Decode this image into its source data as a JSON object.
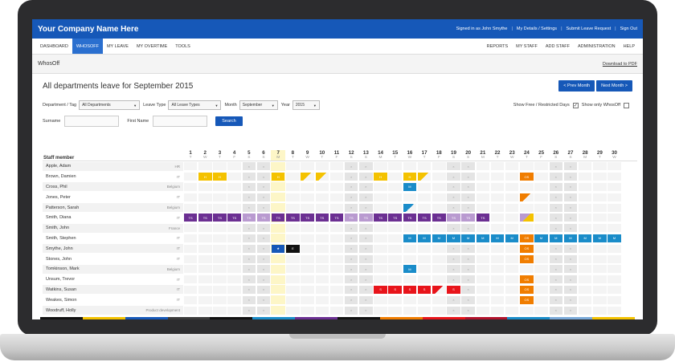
{
  "app": {
    "brand": "Your Company Name Here"
  },
  "header_links": [
    "Signed in as John Smythe",
    "My Details / Settings",
    "Submit Leave Request",
    "Sign Out"
  ],
  "nav_left": [
    "DASHBOARD",
    "WHOSOFF",
    "MY LEAVE",
    "MY OVERTIME",
    "TOOLS"
  ],
  "nav_right": [
    "REPORTS",
    "MY STAFF",
    "ADD STAFF",
    "ADMINISTRATION",
    "HELP"
  ],
  "bar": {
    "title": "WhosOff",
    "download": "Download to PDF"
  },
  "page": {
    "title": "All departments leave for September 2015",
    "prev": "< Prev Month",
    "next": "Next Month >"
  },
  "filters": {
    "dept_label": "Department / Tag",
    "dept_value": "All Departments",
    "type_label": "Leave Type",
    "type_value": "All Leave Types",
    "month_label": "Month",
    "month_value": "September",
    "year_label": "Year",
    "year_value": "2015",
    "show_free": "Show Free / Restricted Days",
    "show_only": "Show only WhosOff"
  },
  "search": {
    "surname_label": "Surname",
    "first_label": "First Name",
    "button": "Search"
  },
  "grid": {
    "header_label": "Staff member",
    "days": [
      {
        "d": "1",
        "w": "T"
      },
      {
        "d": "2",
        "w": "W"
      },
      {
        "d": "3",
        "w": "T"
      },
      {
        "d": "4",
        "w": "F"
      },
      {
        "d": "5",
        "w": "S"
      },
      {
        "d": "6",
        "w": "S"
      },
      {
        "d": "7",
        "w": "M"
      },
      {
        "d": "8",
        "w": "T"
      },
      {
        "d": "9",
        "w": "W"
      },
      {
        "d": "10",
        "w": "T"
      },
      {
        "d": "11",
        "w": "F"
      },
      {
        "d": "12",
        "w": "S"
      },
      {
        "d": "13",
        "w": "S"
      },
      {
        "d": "14",
        "w": "M"
      },
      {
        "d": "15",
        "w": "T"
      },
      {
        "d": "16",
        "w": "W"
      },
      {
        "d": "17",
        "w": "T"
      },
      {
        "d": "18",
        "w": "F"
      },
      {
        "d": "19",
        "w": "S"
      },
      {
        "d": "20",
        "w": "S"
      },
      {
        "d": "21",
        "w": "M"
      },
      {
        "d": "22",
        "w": "T"
      },
      {
        "d": "23",
        "w": "W"
      },
      {
        "d": "24",
        "w": "T"
      },
      {
        "d": "25",
        "w": "F"
      },
      {
        "d": "26",
        "w": "S"
      },
      {
        "d": "27",
        "w": "S"
      },
      {
        "d": "28",
        "w": "M"
      },
      {
        "d": "29",
        "w": "T"
      },
      {
        "d": "30",
        "w": "W"
      }
    ],
    "staff": [
      {
        "name": "Apple, Adam",
        "dept": "HR",
        "cells": {}
      },
      {
        "name": "Brown, Damien",
        "dept": "IT",
        "cells": {
          "2": [
            "hol",
            "H"
          ],
          "3": [
            "hol",
            "H"
          ],
          "7": [
            "hol",
            "H"
          ],
          "9": [
            "tri-hol",
            ""
          ],
          "10": [
            "tri-hol",
            ""
          ],
          "14": [
            "hol",
            "H"
          ],
          "16": [
            "hol",
            "H"
          ],
          "17": [
            "tri-hol",
            ""
          ],
          "24": [
            "os",
            "OS"
          ]
        }
      },
      {
        "name": "Cross, Phil",
        "dept": "Belgium",
        "cells": {
          "16": [
            "med",
            "M"
          ]
        }
      },
      {
        "name": "Jones, Peter",
        "dept": "IT",
        "cells": {
          "24": [
            "tri-os",
            ""
          ]
        }
      },
      {
        "name": "Patterson, Sarah",
        "dept": "Belgium",
        "cells": {
          "16": [
            "tri-med",
            ""
          ]
        }
      },
      {
        "name": "Smith, Diana",
        "dept": "IT",
        "cells": {
          "1": [
            "ts",
            "TS"
          ],
          "2": [
            "ts",
            "TS"
          ],
          "3": [
            "ts",
            "TS"
          ],
          "4": [
            "ts",
            "TS"
          ],
          "5": [
            "tsl",
            "TS"
          ],
          "6": [
            "tsl",
            "TS"
          ],
          "7": [
            "ts",
            "TS"
          ],
          "8": [
            "ts",
            "TS"
          ],
          "9": [
            "ts",
            "TS"
          ],
          "10": [
            "ts",
            "TS"
          ],
          "11": [
            "ts",
            "TS"
          ],
          "12": [
            "tsl",
            "TS"
          ],
          "13": [
            "tsl",
            "TS"
          ],
          "14": [
            "ts",
            "TS"
          ],
          "15": [
            "ts",
            "TS"
          ],
          "16": [
            "ts",
            "TS"
          ],
          "17": [
            "ts",
            "TS"
          ],
          "18": [
            "ts",
            "TS"
          ],
          "19": [
            "tsl",
            "TS"
          ],
          "20": [
            "tsl",
            "TS"
          ],
          "21": [
            "ts",
            "TS"
          ],
          "24": [
            "tri-ts",
            ""
          ]
        }
      },
      {
        "name": "Smith, John",
        "dept": "France",
        "cells": {}
      },
      {
        "name": "Smith, Stephen",
        "dept": "IT",
        "cells": {
          "16": [
            "med",
            "M"
          ],
          "17": [
            "med",
            "M"
          ],
          "18": [
            "med",
            "M"
          ],
          "19": [
            "med",
            "M"
          ],
          "20": [
            "med",
            "M"
          ],
          "21": [
            "med",
            "M"
          ],
          "22": [
            "med",
            "M"
          ],
          "23": [
            "med",
            "M"
          ],
          "24": [
            "os",
            "OS"
          ],
          "25": [
            "med",
            "M"
          ],
          "26": [
            "med",
            "M"
          ],
          "27": [
            "med",
            "M"
          ],
          "28": [
            "med",
            "M"
          ],
          "29": [
            "med",
            "M"
          ],
          "30": [
            "med",
            "M"
          ]
        }
      },
      {
        "name": "Smythe, John",
        "dept": "IT",
        "cells": {
          "7": [
            "blu",
            "★"
          ],
          "8": [
            "blk",
            "E"
          ],
          "24": [
            "os",
            "OS"
          ]
        }
      },
      {
        "name": "Stones, John",
        "dept": "IT",
        "cells": {
          "24": [
            "os",
            "OS"
          ]
        }
      },
      {
        "name": "Tomkinson, Mark",
        "dept": "Belgium",
        "cells": {
          "16": [
            "med",
            "M"
          ]
        }
      },
      {
        "name": "Unsum, Trevor",
        "dept": "IT",
        "cells": {
          "24": [
            "os",
            "OS"
          ]
        }
      },
      {
        "name": "Watkins, Susan",
        "dept": "IT",
        "cells": {
          "14": [
            "sick",
            "S"
          ],
          "15": [
            "sick",
            "S"
          ],
          "16": [
            "sick",
            "S"
          ],
          "17": [
            "sick",
            "S"
          ],
          "18": [
            "tri-sick",
            ""
          ],
          "19": [
            "sick",
            "S"
          ],
          "24": [
            "os",
            "OS"
          ]
        }
      },
      {
        "name": "Weakes, Simon",
        "dept": "IT",
        "cells": {
          "24": [
            "os",
            "OS"
          ]
        }
      },
      {
        "name": "Woodruff, Holly",
        "dept": "Product development",
        "cells": {}
      }
    ]
  },
  "legend_colors": [
    "#111111",
    "#f4c200",
    "#1658b8",
    "#3a3a3a",
    "#111111",
    "#1a8cc9",
    "#6b2f92",
    "#111111",
    "#f07d00",
    "#e8141a",
    "#b1122b",
    "#1a8cc9",
    "#7aa9d8",
    "#f4c200"
  ]
}
